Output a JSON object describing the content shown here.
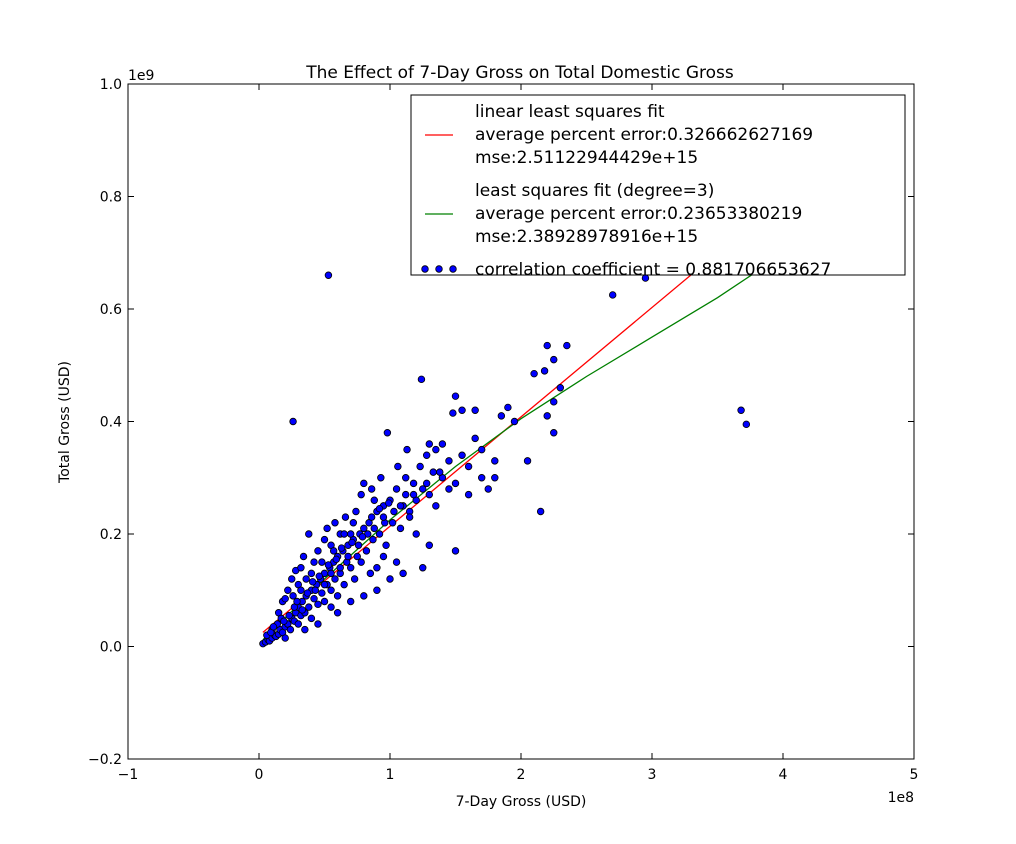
{
  "chart_data": {
    "type": "scatter",
    "title": "The Effect of 7-Day Gross on Total Domestic Gross",
    "xlabel": "7-Day Gross (USD)",
    "ylabel": "Total Gross (USD)",
    "x_offset_label": "1e8",
    "y_offset_label": "1e9",
    "xlim": [
      -1,
      5
    ],
    "ylim": [
      -0.2,
      1.0
    ],
    "x_ticks": [
      -1,
      0,
      1,
      2,
      3,
      4,
      5
    ],
    "x_tick_labels": [
      "−1",
      "0",
      "1",
      "2",
      "3",
      "4",
      "5"
    ],
    "y_ticks": [
      -0.2,
      0.0,
      0.2,
      0.4,
      0.6,
      0.8,
      1.0
    ],
    "y_tick_labels": [
      "−0.2",
      "0.0",
      "0.2",
      "0.4",
      "0.6",
      "0.8",
      "1.0"
    ],
    "grid": false,
    "legend_position": "top-right",
    "colors": {
      "points": "#0000ff",
      "linear": "#ff0000",
      "poly": "#008000"
    },
    "legend": [
      {
        "kind": "line",
        "color": "#ff0000",
        "lines": [
          "linear least squares fit",
          "average percent error:0.326662627169",
          "mse:2.51122944429e+15"
        ]
      },
      {
        "kind": "line",
        "color": "#008000",
        "lines": [
          "least squares fit (degree=3)",
          "average percent error:0.23653380219",
          "mse:2.38928978916e+15"
        ]
      },
      {
        "kind": "scatter",
        "color": "#0000ff",
        "lines": [
          "correlation coefficient = 0.881706653627"
        ]
      }
    ],
    "series": [
      {
        "name": "correlation coefficient = 0.881706653627",
        "kind": "scatter",
        "points": [
          [
            0.03,
            0.005
          ],
          [
            0.05,
            0.008
          ],
          [
            0.07,
            0.012
          ],
          [
            0.08,
            0.01
          ],
          [
            0.1,
            0.015
          ],
          [
            0.12,
            0.02
          ],
          [
            0.13,
            0.018
          ],
          [
            0.15,
            0.022
          ],
          [
            0.16,
            0.03
          ],
          [
            0.18,
            0.025
          ],
          [
            0.2,
            0.035
          ],
          [
            0.2,
            0.015
          ],
          [
            0.22,
            0.04
          ],
          [
            0.24,
            0.03
          ],
          [
            0.25,
            0.05
          ],
          [
            0.27,
            0.045
          ],
          [
            0.28,
            0.06
          ],
          [
            0.3,
            0.04
          ],
          [
            0.3,
            0.07
          ],
          [
            0.32,
            0.055
          ],
          [
            0.33,
            0.08
          ],
          [
            0.35,
            0.06
          ],
          [
            0.36,
            0.09
          ],
          [
            0.38,
            0.07
          ],
          [
            0.4,
            0.1
          ],
          [
            0.4,
            0.05
          ],
          [
            0.42,
            0.085
          ],
          [
            0.44,
            0.11
          ],
          [
            0.45,
            0.075
          ],
          [
            0.47,
            0.12
          ],
          [
            0.48,
            0.095
          ],
          [
            0.5,
            0.13
          ],
          [
            0.5,
            0.08
          ],
          [
            0.52,
            0.11
          ],
          [
            0.54,
            0.14
          ],
          [
            0.55,
            0.1
          ],
          [
            0.57,
            0.15
          ],
          [
            0.58,
            0.12
          ],
          [
            0.6,
            0.16
          ],
          [
            0.6,
            0.09
          ],
          [
            0.62,
            0.13
          ],
          [
            0.64,
            0.17
          ],
          [
            0.65,
            0.11
          ],
          [
            0.67,
            0.15
          ],
          [
            0.68,
            0.18
          ],
          [
            0.7,
            0.14
          ],
          [
            0.72,
            0.19
          ],
          [
            0.73,
            0.12
          ],
          [
            0.75,
            0.16
          ],
          [
            0.77,
            0.2
          ],
          [
            0.78,
            0.15
          ],
          [
            0.8,
            0.21
          ],
          [
            0.82,
            0.17
          ],
          [
            0.84,
            0.22
          ],
          [
            0.85,
            0.13
          ],
          [
            0.87,
            0.19
          ],
          [
            0.9,
            0.24
          ],
          [
            0.92,
            0.2
          ],
          [
            0.95,
            0.25
          ],
          [
            0.97,
            0.18
          ],
          [
            1.0,
            0.26
          ],
          [
            1.02,
            0.22
          ],
          [
            1.05,
            0.28
          ],
          [
            1.08,
            0.21
          ],
          [
            1.1,
            0.25
          ],
          [
            1.12,
            0.3
          ],
          [
            1.15,
            0.24
          ],
          [
            1.18,
            0.29
          ],
          [
            1.2,
            0.26
          ],
          [
            1.23,
            0.32
          ],
          [
            1.25,
            0.28
          ],
          [
            1.28,
            0.34
          ],
          [
            1.3,
            0.27
          ],
          [
            1.33,
            0.31
          ],
          [
            1.35,
            0.35
          ],
          [
            1.4,
            0.3
          ],
          [
            1.45,
            0.33
          ],
          [
            1.5,
            0.29
          ],
          [
            1.55,
            0.34
          ],
          [
            1.6,
            0.32
          ],
          [
            1.65,
            0.37
          ],
          [
            1.7,
            0.3
          ],
          [
            1.8,
            0.33
          ],
          [
            0.15,
            0.06
          ],
          [
            0.18,
            0.08
          ],
          [
            0.22,
            0.1
          ],
          [
            0.25,
            0.12
          ],
          [
            0.26,
            0.09
          ],
          [
            0.28,
            0.135
          ],
          [
            0.3,
            0.11
          ],
          [
            0.32,
            0.14
          ],
          [
            0.34,
            0.16
          ],
          [
            0.36,
            0.12
          ],
          [
            0.38,
            0.2
          ],
          [
            0.42,
            0.15
          ],
          [
            0.45,
            0.17
          ],
          [
            0.48,
            0.15
          ],
          [
            0.5,
            0.19
          ],
          [
            0.52,
            0.21
          ],
          [
            0.55,
            0.18
          ],
          [
            0.58,
            0.22
          ],
          [
            0.62,
            0.2
          ],
          [
            0.66,
            0.23
          ],
          [
            0.7,
            0.2
          ],
          [
            0.74,
            0.24
          ],
          [
            0.78,
            0.27
          ],
          [
            0.8,
            0.29
          ],
          [
            0.86,
            0.28
          ],
          [
            0.93,
            0.3
          ],
          [
            0.98,
            0.38
          ],
          [
            1.06,
            0.32
          ],
          [
            1.13,
            0.35
          ],
          [
            1.24,
            0.475
          ],
          [
            1.3,
            0.36
          ],
          [
            1.4,
            0.36
          ],
          [
            1.48,
            0.415
          ],
          [
            1.5,
            0.445
          ],
          [
            1.55,
            0.42
          ],
          [
            1.65,
            0.42
          ],
          [
            1.85,
            0.41
          ],
          [
            1.9,
            0.425
          ],
          [
            2.05,
            0.33
          ],
          [
            2.1,
            0.485
          ],
          [
            2.18,
            0.49
          ],
          [
            2.2,
            0.535
          ],
          [
            2.25,
            0.51
          ],
          [
            2.35,
            0.535
          ],
          [
            2.3,
            0.46
          ],
          [
            2.25,
            0.435
          ],
          [
            2.2,
            0.41
          ],
          [
            2.25,
            0.38
          ],
          [
            2.15,
            0.24
          ],
          [
            2.7,
            0.625
          ],
          [
            2.95,
            0.655
          ],
          [
            0.53,
            0.66
          ],
          [
            0.26,
            0.4
          ],
          [
            3.68,
            0.42
          ],
          [
            3.72,
            0.395
          ],
          [
            0.55,
            0.07
          ],
          [
            0.6,
            0.06
          ],
          [
            0.7,
            0.08
          ],
          [
            0.8,
            0.09
          ],
          [
            0.9,
            0.1
          ],
          [
            1.0,
            0.12
          ],
          [
            1.1,
            0.13
          ],
          [
            1.25,
            0.14
          ],
          [
            1.3,
            0.18
          ],
          [
            1.5,
            0.17
          ],
          [
            0.9,
            0.14
          ],
          [
            0.95,
            0.16
          ],
          [
            1.05,
            0.15
          ],
          [
            1.15,
            0.23
          ],
          [
            1.2,
            0.2
          ],
          [
            1.35,
            0.25
          ],
          [
            1.45,
            0.28
          ],
          [
            1.6,
            0.27
          ],
          [
            1.75,
            0.28
          ],
          [
            1.8,
            0.3
          ],
          [
            1.7,
            0.35
          ],
          [
            1.95,
            0.4
          ],
          [
            0.35,
            0.03
          ],
          [
            0.45,
            0.04
          ],
          [
            0.2,
            0.085
          ],
          [
            0.32,
            0.1
          ],
          [
            0.4,
            0.13
          ],
          [
            0.57,
            0.17
          ],
          [
            0.65,
            0.2
          ],
          [
            0.72,
            0.22
          ],
          [
            0.88,
            0.26
          ],
          [
            0.96,
            0.22
          ],
          [
            1.08,
            0.25
          ],
          [
            1.18,
            0.27
          ],
          [
            1.28,
            0.29
          ],
          [
            1.38,
            0.31
          ],
          [
            0.1,
            0.03
          ],
          [
            0.14,
            0.04
          ],
          [
            0.17,
            0.05
          ],
          [
            0.27,
            0.07
          ],
          [
            0.33,
            0.065
          ],
          [
            0.43,
            0.1
          ],
          [
            0.5,
            0.11
          ],
          [
            0.55,
            0.13
          ],
          [
            0.62,
            0.14
          ],
          [
            0.68,
            0.16
          ],
          [
            0.76,
            0.18
          ],
          [
            0.83,
            0.2
          ],
          [
            0.88,
            0.21
          ],
          [
            0.95,
            0.23
          ],
          [
            1.03,
            0.24
          ],
          [
            1.12,
            0.27
          ],
          [
            0.06,
            0.02
          ],
          [
            0.09,
            0.025
          ],
          [
            0.11,
            0.035
          ],
          [
            0.19,
            0.045
          ],
          [
            0.23,
            0.055
          ],
          [
            0.29,
            0.08
          ],
          [
            0.37,
            0.095
          ],
          [
            0.41,
            0.115
          ],
          [
            0.46,
            0.125
          ],
          [
            0.53,
            0.145
          ],
          [
            0.59,
            0.155
          ],
          [
            0.63,
            0.175
          ],
          [
            0.71,
            0.185
          ],
          [
            0.79,
            0.195
          ],
          [
            0.86,
            0.23
          ],
          [
            0.92,
            0.245
          ],
          [
            0.99,
            0.255
          ]
        ]
      },
      {
        "name": "linear least squares fit",
        "kind": "line",
        "points": [
          [
            0.03,
            0.025
          ],
          [
            3.5,
            0.7
          ]
        ]
      },
      {
        "name": "least squares fit (degree=3)",
        "kind": "line",
        "points": [
          [
            0.03,
            0.012
          ],
          [
            0.5,
            0.12
          ],
          [
            1.0,
            0.225
          ],
          [
            1.5,
            0.32
          ],
          [
            2.0,
            0.405
          ],
          [
            2.5,
            0.48
          ],
          [
            3.0,
            0.55
          ],
          [
            3.5,
            0.62
          ],
          [
            3.95,
            0.69
          ]
        ]
      }
    ]
  }
}
